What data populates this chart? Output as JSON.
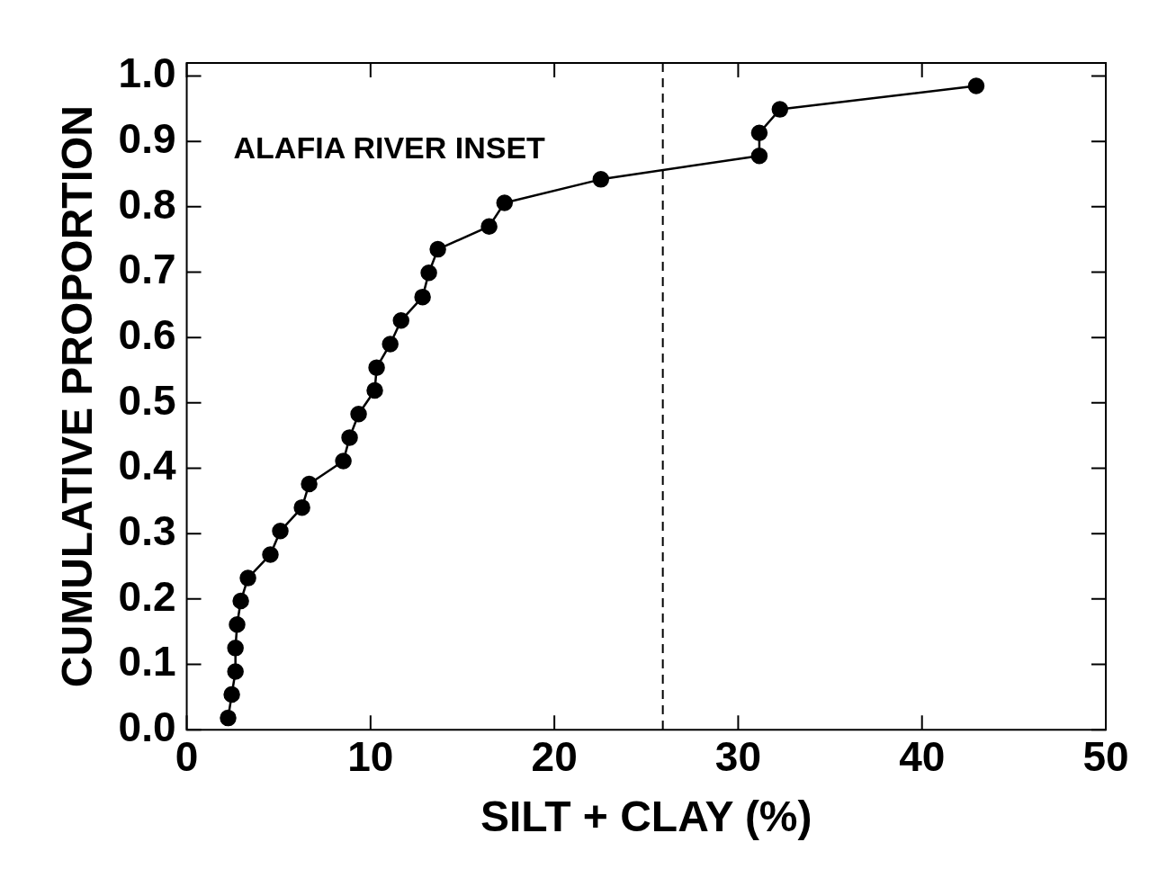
{
  "chart_data": {
    "type": "line",
    "xlabel": "SILT + CLAY (%)",
    "ylabel": "CUMULATIVE PROPORTION",
    "annotations": [
      "ALAFIA RIVER INSET"
    ],
    "xlim": [
      0,
      50
    ],
    "xticks": [
      0,
      10,
      20,
      30,
      40,
      50
    ],
    "ylim": [
      0,
      1.02
    ],
    "yticks": [
      {
        "value": 0,
        "label": "0.0"
      },
      0.1,
      0.2,
      0.3,
      0.4,
      0.5,
      0.6,
      0.7,
      0.8,
      0.9,
      {
        "value": 1,
        "label": "1.0"
      }
    ],
    "grid": false,
    "legend": false,
    "marker": "circle",
    "line_style": "solid",
    "ref_lines": [
      {
        "axis": "x",
        "value": 25.9,
        "line_style": "dashed",
        "color": "#000000"
      }
    ],
    "series": [
      {
        "color": "#000000",
        "x": [
          2.25,
          2.45,
          2.65,
          2.65,
          2.74,
          2.94,
          3.33,
          4.55,
          5.09,
          6.27,
          6.66,
          8.52,
          8.86,
          9.35,
          10.23,
          10.33,
          11.07,
          11.66,
          12.83,
          13.17,
          13.66,
          16.45,
          17.29,
          22.53,
          31.15,
          31.15,
          32.27,
          42.95
        ],
        "values": [
          0.018,
          0.054,
          0.089,
          0.125,
          0.161,
          0.197,
          0.232,
          0.268,
          0.304,
          0.34,
          0.376,
          0.411,
          0.447,
          0.483,
          0.519,
          0.554,
          0.59,
          0.626,
          0.662,
          0.699,
          0.735,
          0.77,
          0.806,
          0.842,
          0.878,
          0.913,
          0.949,
          0.985
        ]
      }
    ]
  }
}
